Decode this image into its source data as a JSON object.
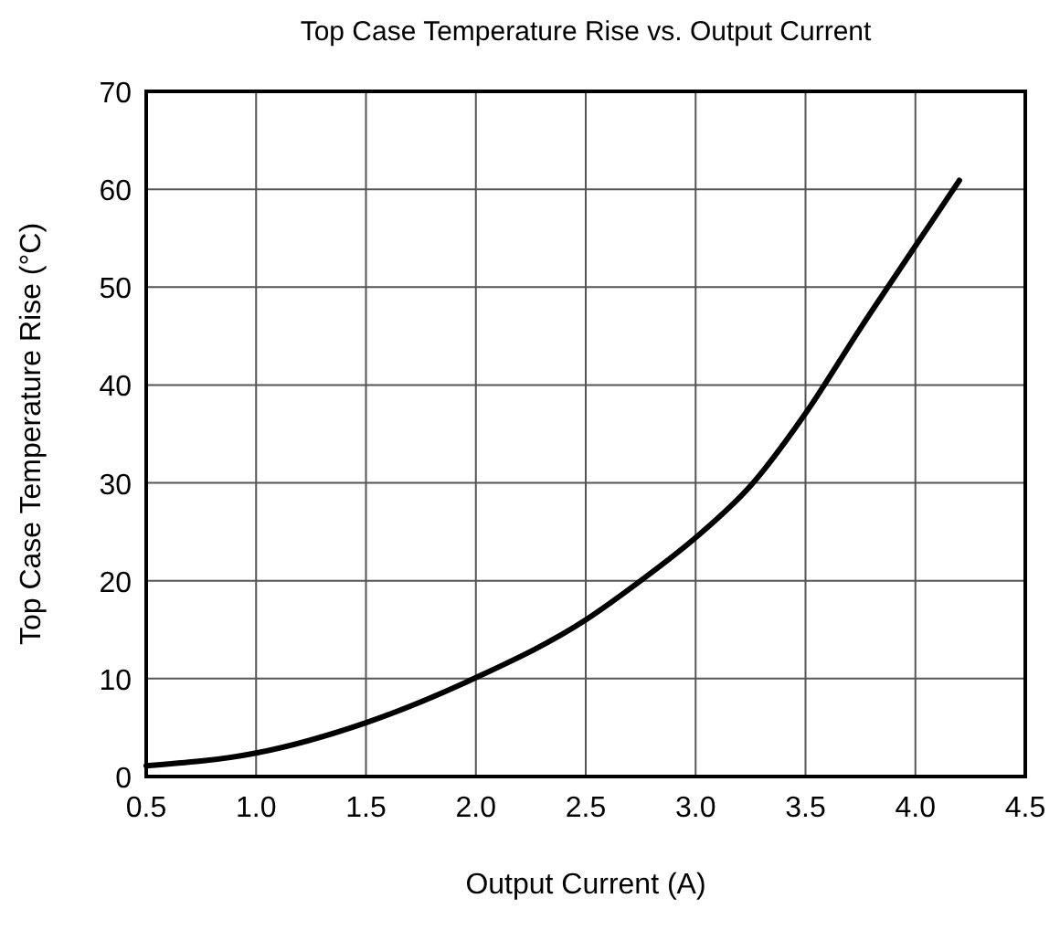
{
  "chart_data": {
    "type": "line",
    "title": "Top Case Temperature Rise vs. Output Current",
    "xlabel": "Output Current (A)",
    "ylabel": "Top Case Temperature Rise (°C)",
    "x": [
      0.5,
      1.0,
      1.5,
      2.0,
      2.5,
      2.75,
      3.0,
      3.25,
      3.5,
      3.75,
      4.0,
      4.2
    ],
    "series": [
      {
        "color": "#000000",
        "values": [
          1.1,
          2.4,
          5.5,
          10.1,
          16,
          20,
          24.4,
          29.7,
          37.1,
          45.8,
          54.2,
          60.9
        ]
      }
    ],
    "xlim": [
      0.5,
      4.5
    ],
    "xticks": [
      {
        "value": 0.5,
        "label": "0.5"
      },
      {
        "value": 1,
        "label": "1.0"
      },
      {
        "value": 1.5,
        "label": "1.5"
      },
      {
        "value": 2,
        "label": "2.0"
      },
      {
        "value": 2.5,
        "label": "2.5"
      },
      {
        "value": 3,
        "label": "3.0"
      },
      {
        "value": 3.5,
        "label": "3.5"
      },
      {
        "value": 4,
        "label": "4.0"
      },
      {
        "value": 4.5,
        "label": "4.5"
      }
    ],
    "ylim": [
      0,
      70
    ],
    "yticks": [
      0,
      10,
      20,
      30,
      40,
      50,
      60,
      70
    ],
    "grid": true,
    "line_style": "solid",
    "marker": "none"
  }
}
